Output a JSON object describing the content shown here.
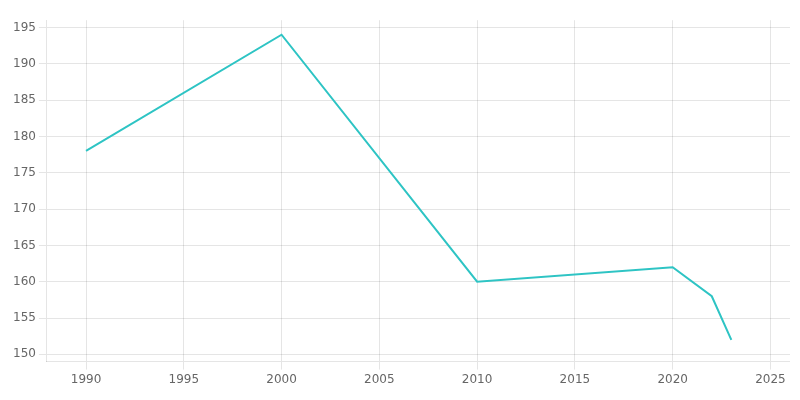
{
  "chart_data": {
    "type": "line",
    "x": [
      1990,
      2000,
      2010,
      2020,
      2022,
      2023
    ],
    "values": [
      178,
      194,
      160,
      162,
      158,
      152
    ],
    "color": "#2EC4C4",
    "xlim": [
      1988,
      2026
    ],
    "ylim": [
      149,
      196
    ],
    "xticks": [
      1990,
      1995,
      2000,
      2005,
      2010,
      2015,
      2020,
      2025
    ],
    "yticks": [
      150,
      155,
      160,
      165,
      170,
      175,
      180,
      185,
      190,
      195
    ],
    "grid": true
  }
}
